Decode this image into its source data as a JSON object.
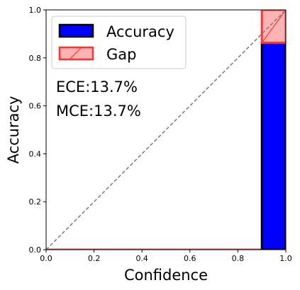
{
  "chart_data": {
    "type": "bar",
    "title": "",
    "xlabel": "Confidence",
    "ylabel": "Accuracy",
    "xlim": [
      0.0,
      1.0
    ],
    "ylim": [
      0.0,
      1.0
    ],
    "xticks": [
      "0.0",
      "0.2",
      "0.4",
      "0.6",
      "0.8",
      "1.0"
    ],
    "yticks": [
      "0.0",
      "0.2",
      "0.4",
      "0.6",
      "0.8",
      "1.0"
    ],
    "bins": [
      {
        "start": 0.0,
        "end": 0.9,
        "accuracy": 0.0,
        "gap": 0.0
      },
      {
        "start": 0.9,
        "end": 1.0,
        "accuracy": 0.863,
        "gap": 0.137
      }
    ],
    "diagonal": {
      "from": [
        0.0,
        0.0
      ],
      "to": [
        1.0,
        1.0
      ],
      "style": "dashed",
      "color": "#808080"
    },
    "legend": {
      "position": "top-left",
      "entries": [
        {
          "label": "Accuracy",
          "color": "#0000ff"
        },
        {
          "label": "Gap",
          "color": "#ff3333"
        }
      ]
    },
    "annotations": [
      "ECE:13.7%",
      "MCE:13.7%"
    ],
    "colors": {
      "accuracy_fill": "#0000ff",
      "accuracy_edge": "#000000",
      "gap_fill": "#ffb3b3",
      "gap_edge": "#ff3333"
    },
    "grid": false
  }
}
